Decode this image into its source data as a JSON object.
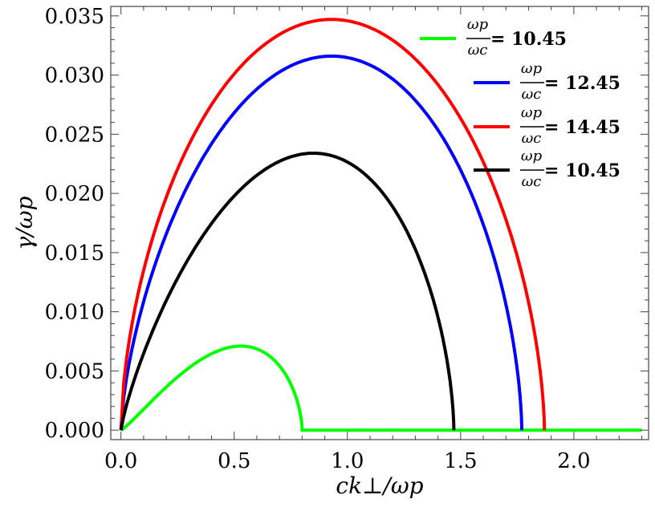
{
  "chart_data": {
    "type": "line",
    "xlabel": "ck⊥/ωp",
    "ylabel": "γ/ωp",
    "xlim": [
      -0.045,
      2.33
    ],
    "ylim": [
      -0.0008,
      0.0358
    ],
    "xticks": [
      0.0,
      0.5,
      1.0,
      1.5,
      2.0
    ],
    "xtick_labels": [
      "0.0",
      "0.5",
      "1.0",
      "1.5",
      "2.0"
    ],
    "yticks": [
      0.0,
      0.005,
      0.01,
      0.015,
      0.02,
      0.025,
      0.03,
      0.035
    ],
    "ytick_labels": [
      "0.000",
      "0.005",
      "0.010",
      "0.015",
      "0.020",
      "0.025",
      "0.030",
      "0.035"
    ],
    "legend_position": "top-right",
    "series": [
      {
        "name": "ωp/ωc = 10.45",
        "ratio_label": "= 10.45",
        "color": "#00ff00",
        "peak_x": 0.53,
        "peak_y": 0.0071,
        "cutoff_x": 0.8,
        "tail_end_x": 2.3
      },
      {
        "name": "ωp/ωc = 12.45",
        "ratio_label": "= 12.45",
        "color": "#0000ff",
        "peak_x": 0.93,
        "peak_y": 0.0316,
        "cutoff_x": 1.77
      },
      {
        "name": "ωp/ωc = 14.45",
        "ratio_label": "= 14.45",
        "color": "#ff0000",
        "peak_x": 0.93,
        "peak_y": 0.0347,
        "cutoff_x": 1.87
      },
      {
        "name": "ωp/ωc = 10.45",
        "ratio_label": "= 10.45",
        "color": "#000000",
        "peak_x": 0.85,
        "peak_y": 0.0234,
        "cutoff_x": 1.47
      }
    ],
    "legend_fraction": {
      "numerator": "ωp",
      "denominator": "ωc"
    }
  }
}
